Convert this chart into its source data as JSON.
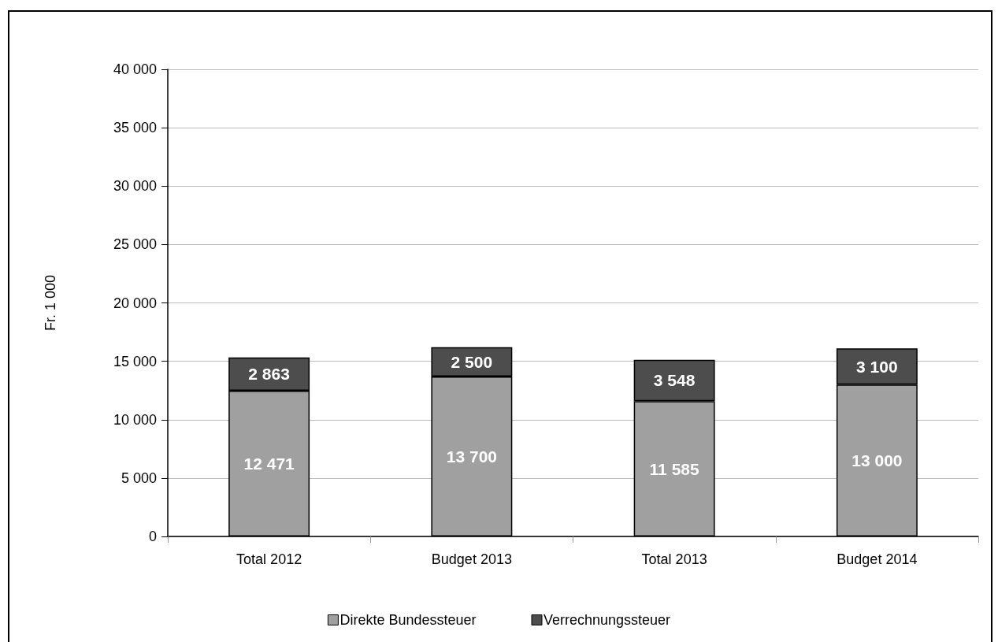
{
  "chart_data": {
    "type": "bar",
    "ylabel": "Fr. 1 000",
    "categories": [
      "Total 2012",
      "Budget 2013",
      "Total 2013",
      "Budget 2014"
    ],
    "series": [
      {
        "name": "Direkte Bundessteuer",
        "color": "#a0a0a0",
        "values": [
          12471,
          13700,
          11585,
          13000
        ]
      },
      {
        "name": "Verrechnungssteuer",
        "color": "#4d4d4d",
        "values": [
          2863,
          2500,
          3548,
          3100
        ]
      }
    ],
    "stacked": true,
    "ylim": [
      0,
      40000
    ],
    "yticks": [
      0,
      5000,
      10000,
      15000,
      20000,
      25000,
      30000,
      35000,
      40000
    ],
    "grid": "y",
    "legend": "bottom",
    "data_labels": true
  }
}
